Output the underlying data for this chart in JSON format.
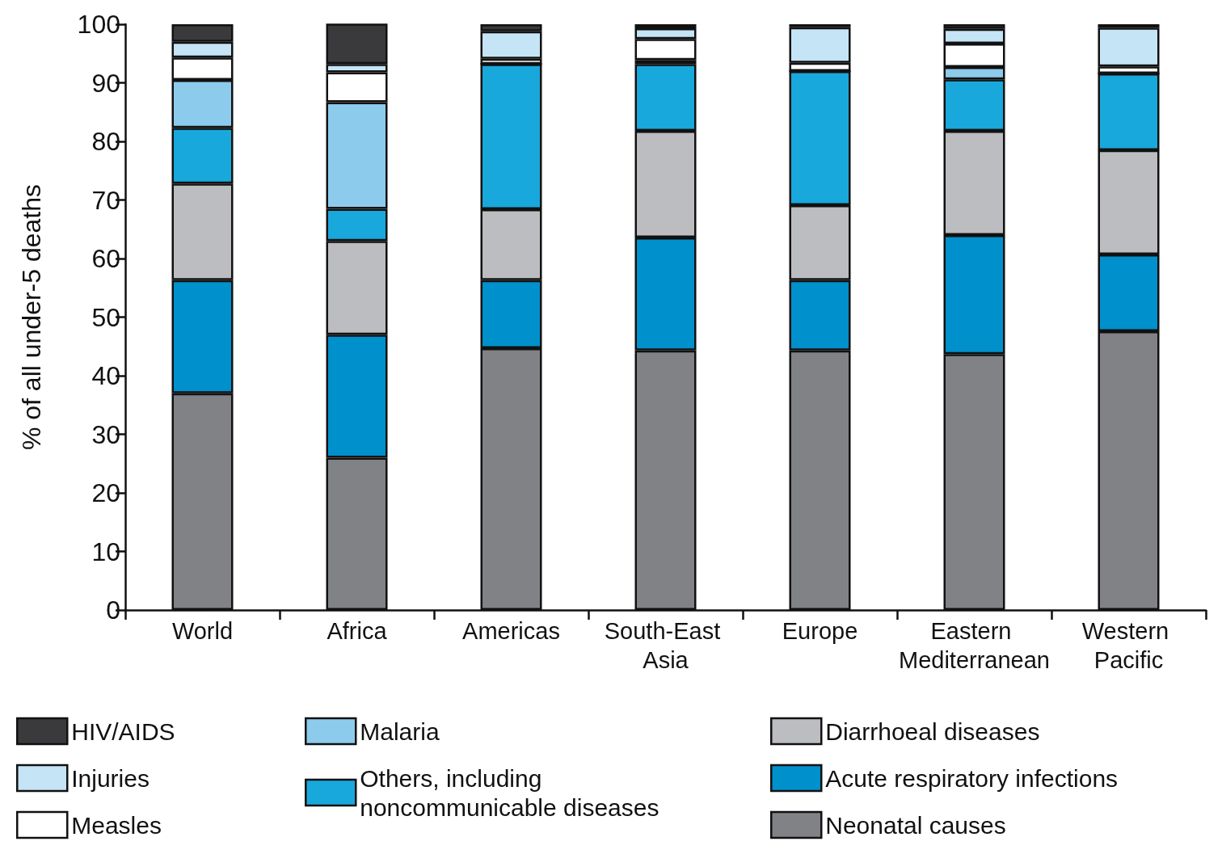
{
  "chart_data": {
    "type": "bar",
    "stacked": true,
    "ylabel": "% of all under-5 deaths",
    "categories": [
      "World",
      "Africa",
      "Americas",
      "South-East Asia",
      "Europe",
      "Eastern Mediterranean",
      "Western Pacific"
    ],
    "series": [
      {
        "name": "Neonatal causes",
        "color": "#808285",
        "values": [
          37,
          26,
          44.7,
          44.3,
          44.3,
          43.7,
          47.6
        ]
      },
      {
        "name": "Acute respiratory infections",
        "color": "#0090cc",
        "values": [
          19.3,
          21,
          11.6,
          19.3,
          12,
          20.3,
          13.1
        ]
      },
      {
        "name": "Diarrhoeal diseases",
        "color": "#bcbdc0",
        "values": [
          16.5,
          16,
          12.1,
          18.2,
          12.8,
          17.8,
          17.8
        ]
      },
      {
        "name": "Others, including noncommunicable diseases",
        "color": "#18a8dc",
        "values": [
          9.5,
          5.5,
          24.8,
          11.4,
          22.9,
          8.8,
          13.1
        ]
      },
      {
        "name": "Malaria",
        "color": "#8dcbec",
        "values": [
          8.2,
          18.2,
          0,
          0.7,
          0,
          2.1,
          0
        ]
      },
      {
        "name": "Measles",
        "color": "#ffffff",
        "values": [
          3.8,
          5.1,
          0.9,
          3.6,
          1.4,
          4,
          1.2
        ]
      },
      {
        "name": "Injuries",
        "color": "#c5e4f5",
        "values": [
          2.7,
          1.4,
          4.7,
          1.8,
          6.1,
          2.5,
          6.6
        ]
      },
      {
        "name": "HIV/AIDS",
        "color": "#3a3a3c",
        "values": [
          3,
          6.9,
          1.2,
          0.7,
          0.5,
          0.8,
          0.6
        ]
      }
    ],
    "ylim": [
      0,
      100
    ],
    "yticks": [
      0,
      10,
      20,
      30,
      40,
      50,
      60,
      70,
      80,
      90,
      100
    ],
    "legend": "bottom"
  }
}
